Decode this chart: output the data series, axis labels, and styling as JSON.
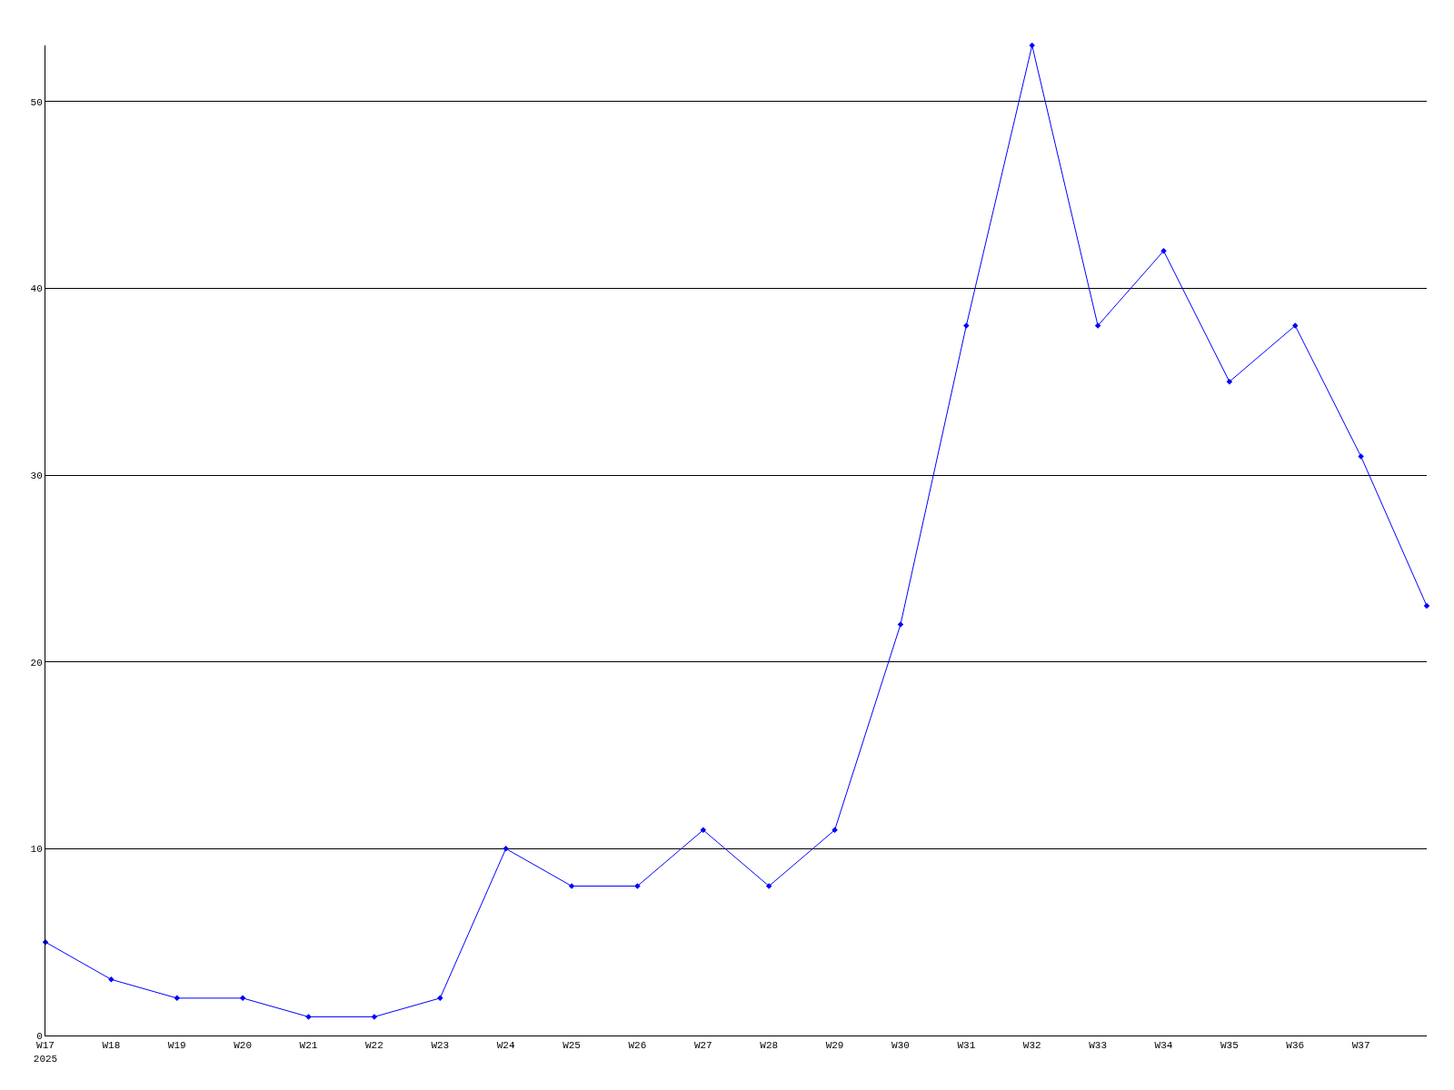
{
  "chart_data": {
    "type": "line",
    "categories": [
      "W17\n2025",
      "W18",
      "W19",
      "W20",
      "W21",
      "W22",
      "W23",
      "W24",
      "W25",
      "W26",
      "W27",
      "W28",
      "W29",
      "W30",
      "W31",
      "W32",
      "W33",
      "W34",
      "W35",
      "W36",
      "W37",
      null
    ],
    "series": [
      {
        "color": "#0000ff",
        "values": [
          5,
          3,
          2,
          2,
          1,
          1,
          2,
          10,
          8,
          8,
          11,
          8,
          11,
          22,
          38,
          53,
          38,
          42,
          35,
          38,
          31,
          23
        ]
      }
    ],
    "ylim": [
      0,
      53
    ],
    "yticks": [
      0,
      10,
      20,
      30,
      40,
      50
    ],
    "grid": "y",
    "marker": "diamond",
    "line_style": "solid"
  }
}
